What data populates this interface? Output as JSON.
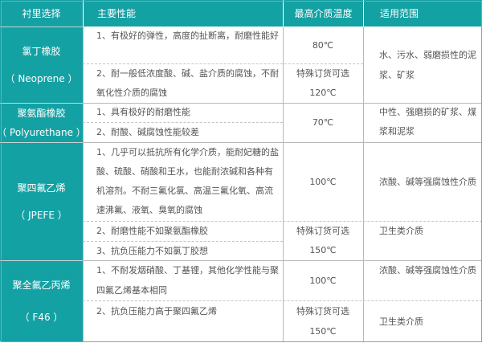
{
  "colors": {
    "header_bg": "#14a1a4",
    "text": "#555555"
  },
  "headers": [
    "衬里选择",
    "主要性能",
    "最高介质温度",
    "适用范围"
  ],
  "rows": [
    {
      "material": "氯丁橡胶",
      "material_en": "（ Neoprene ）",
      "props": [
        "1、有极好的弹性，高度的扯断离，耐磨性能好",
        "2、耐一般低浓度酸、碱、盐介质的腐蚀，不耐氧化性介质的腐蚀"
      ],
      "temps": [
        "80℃",
        "特殊订货可选",
        "120℃"
      ],
      "range": [
        "水、污水、弱磨损性的泥浆、矿浆"
      ]
    },
    {
      "material": "聚氨酯橡胶",
      "material_en": "（ Polyurethane ）",
      "props": [
        "1、具有极好的耐磨性能",
        "2、耐酸、碱腐蚀性能较差"
      ],
      "temps": [
        "70℃"
      ],
      "range": [
        "中性、强磨损的矿浆、煤浆和泥浆"
      ]
    },
    {
      "material": "聚四氟乙烯",
      "material_en": "（ JPEFE ）",
      "props": [
        "1、几乎可以抵抗所有化学介质，能耐妃糖的盐酸、硫酸、硝酸和王水，也能耐浓碱和各种有机溶剂。不耐三氟化氯、高温三氟化氧、高流速沸氟、液氧、臭氧的腐蚀",
        "2、耐磨性能不如聚氨酯橡胶",
        "3、抗负压能力不如氯丁胶想"
      ],
      "temps": [
        "100℃",
        "特殊订货可选",
        "150℃"
      ],
      "range": [
        "浓酸、碱等强腐蚀性介质",
        "卫生类介质"
      ]
    },
    {
      "material": "聚全氟乙丙烯",
      "material_en": "（ F46 ）",
      "props": [
        "1、不耐发烟硝酸、丁基锂，其他化学性能与聚四氟乙烯基本相同",
        "2、抗负压能力高于聚四氟乙烯"
      ],
      "temps": [
        "100℃",
        "特殊订货可选",
        "150℃"
      ],
      "range": [
        "浓酸、碱等强腐蚀性介质",
        "卫生类介质"
      ]
    }
  ]
}
